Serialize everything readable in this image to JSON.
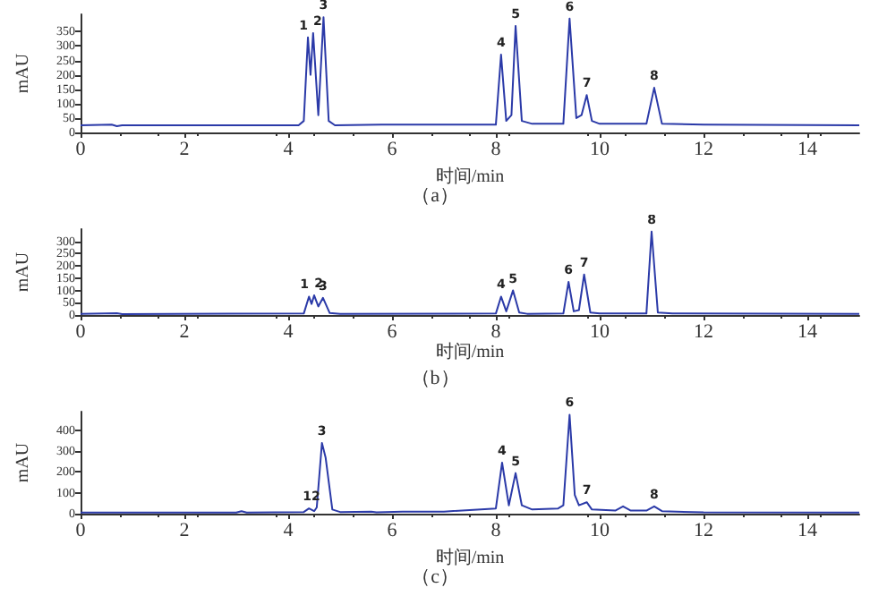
{
  "chart_data": [
    {
      "type": "line",
      "title": "（a）",
      "xlabel": "时间/min",
      "ylabel": "mAU",
      "xlim": [
        0,
        15
      ],
      "xticks": [
        0,
        2,
        4,
        6,
        8,
        10,
        12,
        14
      ],
      "ylim": [
        0,
        410
      ],
      "yticks": [
        0,
        50,
        100,
        150,
        200,
        250,
        300,
        350
      ],
      "marker": "none",
      "series": [
        {
          "color": "#2b3aa8",
          "x": [
            0,
            0.6,
            0.7,
            0.8,
            4.2,
            4.3,
            4.38,
            4.43,
            4.48,
            4.58,
            4.68,
            4.78,
            4.9,
            5.8,
            8.0,
            8.1,
            8.2,
            8.3,
            8.38,
            8.5,
            8.7,
            9.3,
            9.42,
            9.55,
            9.65,
            9.75,
            9.85,
            10.0,
            10.5,
            10.9,
            11.05,
            11.2,
            12,
            15
          ],
          "values": [
            25,
            27,
            22,
            25,
            25,
            40,
            330,
            200,
            345,
            60,
            400,
            40,
            25,
            27,
            27,
            270,
            40,
            60,
            370,
            40,
            30,
            30,
            395,
            50,
            60,
            130,
            40,
            30,
            30,
            30,
            155,
            30,
            27,
            25
          ]
        }
      ],
      "annotations": [
        {
          "text": "1",
          "x": 4.38,
          "y": 330
        },
        {
          "text": "2",
          "x": 4.48,
          "y": 345
        },
        {
          "text": "3",
          "x": 4.68,
          "y": 400
        },
        {
          "text": "4",
          "x": 8.1,
          "y": 270
        },
        {
          "text": "5",
          "x": 8.38,
          "y": 370
        },
        {
          "text": "6",
          "x": 9.42,
          "y": 395
        },
        {
          "text": "7",
          "x": 9.75,
          "y": 130
        },
        {
          "text": "8",
          "x": 11.05,
          "y": 155
        }
      ]
    },
    {
      "type": "line",
      "title": "（b）",
      "xlabel": "时间/min",
      "ylabel": "mAU",
      "xlim": [
        0,
        15
      ],
      "xticks": [
        0,
        2,
        4,
        6,
        8,
        10,
        12,
        14
      ],
      "ylim": [
        0,
        350
      ],
      "yticks": [
        0,
        50,
        100,
        150,
        200,
        250,
        300
      ],
      "marker": "none",
      "series": [
        {
          "color": "#2b3aa8",
          "x": [
            0,
            0.7,
            0.8,
            4.3,
            4.4,
            4.45,
            4.5,
            4.58,
            4.67,
            4.8,
            5,
            8.0,
            8.1,
            8.2,
            8.33,
            8.45,
            8.6,
            9.3,
            9.4,
            9.5,
            9.6,
            9.7,
            9.82,
            10,
            10.9,
            11.0,
            11.12,
            11.4,
            15
          ],
          "values": [
            5,
            7,
            4,
            6,
            75,
            45,
            80,
            35,
            70,
            8,
            5,
            6,
            75,
            15,
            100,
            10,
            5,
            6,
            135,
            15,
            20,
            165,
            10,
            6,
            6,
            340,
            10,
            6,
            5
          ]
        }
      ],
      "annotations": [
        {
          "text": "1",
          "x": 4.4,
          "y": 75
        },
        {
          "text": "2",
          "x": 4.5,
          "y": 80
        },
        {
          "text": "3",
          "x": 4.67,
          "y": 70
        },
        {
          "text": "4",
          "x": 8.1,
          "y": 75
        },
        {
          "text": "5",
          "x": 8.33,
          "y": 100
        },
        {
          "text": "6",
          "x": 9.4,
          "y": 135
        },
        {
          "text": "7",
          "x": 9.7,
          "y": 165
        },
        {
          "text": "8",
          "x": 11.0,
          "y": 340
        }
      ]
    },
    {
      "type": "line",
      "title": "（c）",
      "xlabel": "时间/min",
      "ylabel": "mAU",
      "xlim": [
        0,
        15
      ],
      "xticks": [
        0,
        2,
        4,
        6,
        8,
        10,
        12,
        14
      ],
      "ylim": [
        0,
        490
      ],
      "yticks": [
        0,
        100,
        200,
        300,
        400
      ],
      "marker": "none",
      "series": [
        {
          "color": "#2b3aa8",
          "x": [
            0,
            3.0,
            3.1,
            3.2,
            4.3,
            4.4,
            4.5,
            4.55,
            4.65,
            4.72,
            4.85,
            5.0,
            5.6,
            5.7,
            6.2,
            7.0,
            8.0,
            8.12,
            8.25,
            8.38,
            8.5,
            8.7,
            9.2,
            9.3,
            9.42,
            9.52,
            9.6,
            9.75,
            9.85,
            10.3,
            10.45,
            10.6,
            10.9,
            11.05,
            11.2,
            12,
            15
          ],
          "values": [
            5,
            5,
            12,
            5,
            8,
            25,
            12,
            30,
            340,
            270,
            20,
            8,
            10,
            6,
            10,
            10,
            25,
            245,
            40,
            195,
            40,
            20,
            25,
            40,
            475,
            90,
            40,
            55,
            20,
            15,
            35,
            15,
            15,
            35,
            12,
            6,
            5
          ]
        }
      ],
      "annotations": [
        {
          "text": "12",
          "x": 4.45,
          "y": 25
        },
        {
          "text": "3",
          "x": 4.65,
          "y": 340
        },
        {
          "text": "4",
          "x": 8.12,
          "y": 245
        },
        {
          "text": "5",
          "x": 8.38,
          "y": 195
        },
        {
          "text": "6",
          "x": 9.42,
          "y": 475
        },
        {
          "text": "7",
          "x": 9.75,
          "y": 55
        },
        {
          "text": "8",
          "x": 11.05,
          "y": 35
        }
      ]
    }
  ]
}
